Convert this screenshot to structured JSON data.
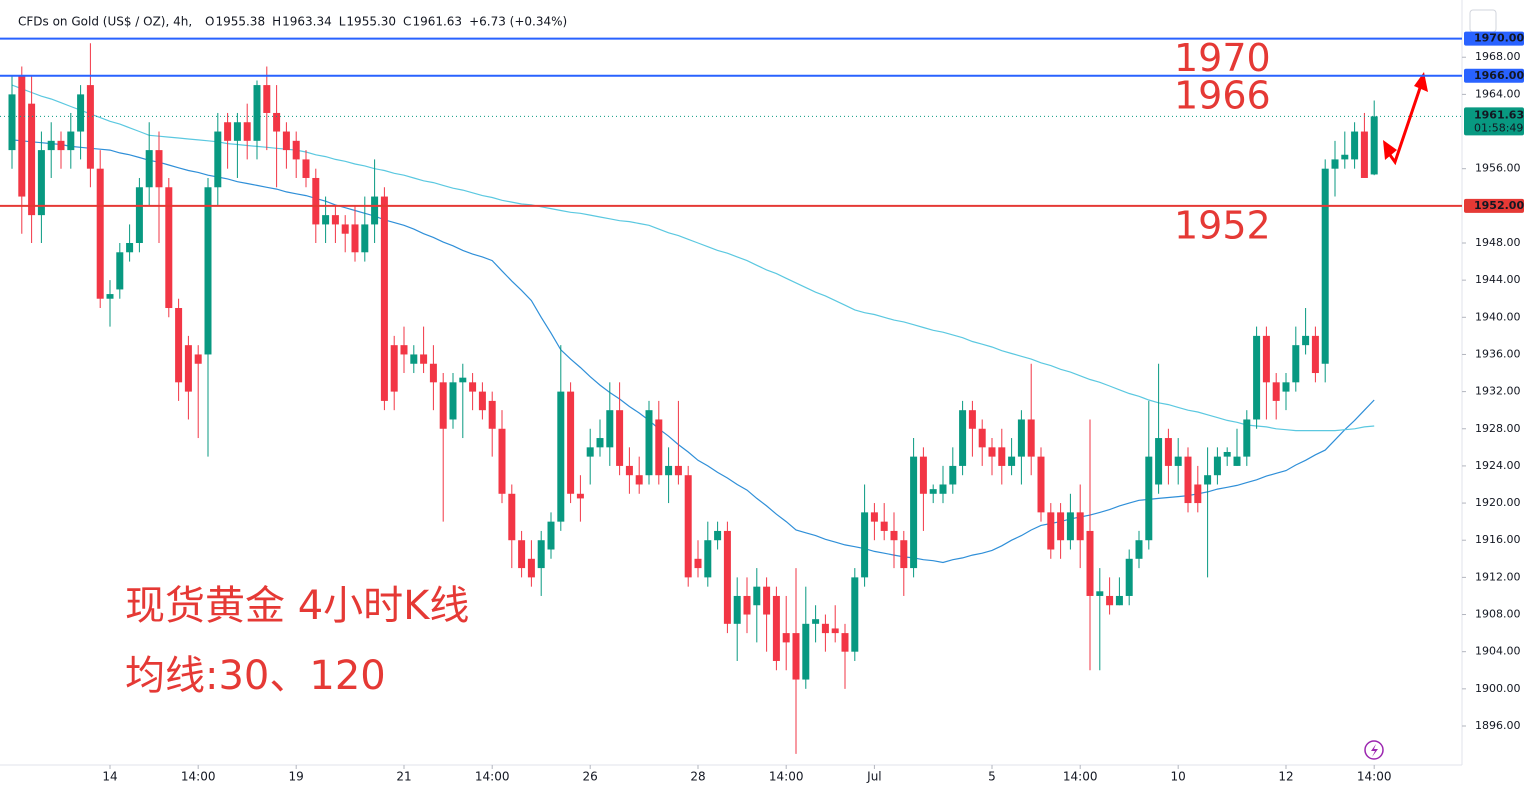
{
  "chart_data": {
    "type": "candlestick",
    "header": {
      "symbol": "CFDs on Gold (US$ / OZ), 4h,",
      "ohlc": [
        {
          "key": "O",
          "value": "1955.38"
        },
        {
          "key": "H",
          "value": "1963.34"
        },
        {
          "key": "L",
          "value": "1955.30"
        },
        {
          "key": "C",
          "value": "1961.63"
        }
      ],
      "change": "+6.73 (+0.34%)"
    },
    "categories": [
      null,
      null,
      null,
      null,
      null,
      null,
      null,
      null,
      null,
      null,
      "14",
      null,
      null,
      null,
      null,
      null,
      null,
      null,
      null,
      "14:00",
      null,
      null,
      null,
      null,
      null,
      null,
      null,
      null,
      null,
      "19",
      null,
      null,
      null,
      null,
      null,
      null,
      null,
      null,
      null,
      null,
      "21",
      null,
      null,
      null,
      null,
      null,
      null,
      null,
      null,
      "14:00",
      null,
      null,
      null,
      null,
      null,
      null,
      null,
      null,
      null,
      "26",
      null,
      null,
      null,
      null,
      null,
      null,
      null,
      null,
      null,
      null,
      "28",
      null,
      null,
      null,
      null,
      null,
      null,
      null,
      null,
      "14:00",
      null,
      null,
      null,
      null,
      null,
      null,
      null,
      null,
      "Jul",
      null,
      null,
      null,
      null,
      null,
      null,
      null,
      null,
      null,
      null,
      null,
      "5",
      null,
      null,
      null,
      null,
      null,
      null,
      null,
      null,
      "14:00",
      null,
      null,
      null,
      null,
      null,
      null,
      null,
      null,
      null,
      "10",
      null,
      null,
      null,
      null,
      null,
      null,
      null,
      null,
      null,
      null,
      "12",
      null,
      null,
      null,
      null,
      null,
      null,
      null,
      null,
      "14:00"
    ],
    "open": [
      1958,
      1966,
      1963,
      1951,
      1958,
      1959,
      1958,
      1960,
      1965,
      1956,
      1942,
      1943,
      1947,
      1948,
      1954,
      1958,
      1954,
      1941,
      1937,
      1936,
      1936,
      1954,
      1961,
      1959,
      1961,
      1959,
      1965,
      1962,
      1960,
      1959,
      1957,
      1955,
      1950,
      1951,
      1950,
      1950,
      1947,
      1950,
      1953,
      1937,
      1937,
      1935,
      1936,
      1935,
      1933,
      1929,
      1933,
      1933,
      1932,
      1931,
      1928,
      1921,
      1916,
      1914,
      1913,
      1915,
      1918,
      1932,
      1921,
      1925,
      1926,
      1926,
      1930,
      1924,
      1923,
      1923,
      1929,
      1923,
      1924,
      1923,
      1914,
      1912,
      1916,
      1917,
      1907,
      1910,
      1909,
      1911,
      1910,
      1906,
      1906,
      1901,
      1907,
      1907,
      1906.5,
      1906,
      1904,
      1912,
      1919,
      1918,
      1917,
      1916,
      1913,
      1925,
      1921,
      1921,
      1922,
      1924,
      1930,
      1928,
      1926,
      1926,
      1924,
      1925,
      1929,
      1925,
      1919,
      1919,
      1916,
      1919,
      1917,
      1910,
      1910,
      1909,
      1910,
      1914,
      1916,
      1922,
      1927,
      1924,
      1925,
      1922,
      1922,
      1923,
      1925,
      1924,
      1925,
      1929,
      1938,
      1933,
      1932,
      1933,
      1937,
      1938,
      1935,
      1956,
      1957,
      1957,
      1960,
      1955.38
    ],
    "high": [
      1966,
      1967,
      1966,
      1960,
      1961,
      1960,
      1962,
      1965,
      1969.5,
      1958,
      1944,
      1948,
      1950,
      1955,
      1961,
      1960,
      1955,
      1942,
      1938,
      1937,
      1955,
      1962,
      1962,
      1962,
      1963,
      1965.5,
      1967,
      1965,
      1961,
      1960,
      1958,
      1956,
      1953,
      1952,
      1951,
      1952,
      1953,
      1957,
      1954,
      1938,
      1939,
      1937,
      1939,
      1937,
      1934,
      1934,
      1935,
      1934,
      1933,
      1932,
      1930,
      1922,
      1917,
      1916,
      1917,
      1919,
      1937,
      1933,
      1923,
      1928,
      1929,
      1933,
      1933,
      1926,
      1925,
      1931,
      1931,
      1926,
      1931,
      1924,
      1916,
      1918,
      1918,
      1918,
      1912,
      1912,
      1913,
      1912,
      1911,
      1910,
      1913,
      1911,
      1909,
      1908,
      1909,
      1907,
      1913,
      1922,
      1920,
      1920,
      1919,
      1917,
      1927,
      1926,
      1922,
      1924,
      1926,
      1931,
      1931,
      1929,
      1927,
      1928,
      1927,
      1930,
      1935,
      1926,
      1920,
      1920,
      1921,
      1922,
      1929,
      1913,
      1912,
      1912,
      1915,
      1917,
      1931,
      1935,
      1928,
      1927,
      1926,
      1924,
      1926,
      1926,
      1926,
      1928,
      1930,
      1939,
      1939,
      1934,
      1934,
      1939,
      1941,
      1939,
      1957,
      1959,
      1960,
      1961,
      1962,
      1963.34
    ],
    "low": [
      1956,
      1949,
      1948,
      1948,
      1955,
      1956,
      1956,
      1957,
      1954,
      1941,
      1939,
      1942,
      1946,
      1947,
      1952,
      1948,
      1940,
      1931,
      1929,
      1927,
      1925,
      1952,
      1956,
      1955,
      1957,
      1957,
      1958,
      1954,
      1956,
      1955,
      1954,
      1948,
      1948,
      1948,
      1947,
      1946,
      1946,
      1948,
      1930,
      1930,
      1934,
      1934,
      1934,
      1930,
      1918,
      1928,
      1927,
      1930,
      1929,
      1925,
      1920,
      1913,
      1912,
      1911,
      1910,
      1914,
      1917,
      1920,
      1918,
      1922,
      1925,
      1924,
      1923,
      1921,
      1921,
      1922,
      1922,
      1920,
      1922,
      1911,
      1912,
      1911,
      1915,
      1906,
      1903,
      1906,
      1905,
      1904,
      1902,
      1902,
      1893,
      1900,
      1905,
      1904,
      1905,
      1900,
      1903,
      1911,
      1916,
      1916,
      1913,
      1910,
      1912,
      1917,
      1920,
      1920,
      1921,
      1923,
      1925,
      1924,
      1923,
      1922,
      1923,
      1922,
      1923,
      1918,
      1914,
      1914,
      1915,
      1913,
      1902,
      1902,
      1908,
      1909,
      1909,
      1913,
      1915,
      1921,
      1922,
      1922,
      1919,
      1919,
      1912,
      1922,
      1924,
      1924,
      1924,
      1928,
      1929,
      1929,
      1930,
      1932,
      1936,
      1933,
      1933,
      1953,
      1956,
      1956,
      1955,
      1955.3
    ],
    "close": [
      1964,
      1953,
      1951,
      1958,
      1959,
      1958,
      1960,
      1964,
      1956,
      1942,
      1942.5,
      1947,
      1948,
      1954,
      1958,
      1954,
      1941,
      1933,
      1932,
      1935,
      1954,
      1960,
      1959,
      1961,
      1959,
      1965,
      1962,
      1960,
      1958,
      1957,
      1955,
      1950,
      1951,
      1950,
      1949,
      1947,
      1950,
      1953,
      1931,
      1932,
      1936,
      1936,
      1935,
      1933,
      1928,
      1933,
      1933.5,
      1932,
      1930,
      1928,
      1921,
      1916,
      1913,
      1912,
      1916,
      1918,
      1932,
      1921,
      1920.5,
      1926,
      1927,
      1930,
      1924,
      1923,
      1922,
      1930,
      1923,
      1924,
      1923,
      1912,
      1913,
      1916,
      1917,
      1907,
      1910,
      1908,
      1911,
      1908,
      1903,
      1905,
      1901,
      1907,
      1907.5,
      1906,
      1906,
      1904,
      1912,
      1919,
      1918,
      1917,
      1916,
      1913,
      1925,
      1921,
      1921.5,
      1922,
      1924,
      1930,
      1928,
      1926,
      1925,
      1924,
      1925,
      1929,
      1925,
      1919,
      1915,
      1916,
      1919,
      1916,
      1910,
      1910.5,
      1909,
      1910,
      1914,
      1916,
      1925,
      1927,
      1924,
      1925,
      1920,
      1920,
      1923,
      1925,
      1925.5,
      1925,
      1929,
      1938,
      1933,
      1931,
      1933,
      1937,
      1938,
      1934,
      1956,
      1957,
      1957.5,
      1960,
      1955,
      1961.63
    ],
    "up_color": "#089981",
    "down_color": "#f23645",
    "lines": [
      {
        "color": "#2f8fd8",
        "values": [
          1959.1,
          1959.0,
          1958.9,
          1958.8,
          1958.7,
          1958.6,
          1958.4,
          1958.3,
          1958.2,
          1958.1,
          1958.0,
          1957.7,
          1957.5,
          1957.2,
          1956.9,
          1956.7,
          1956.4,
          1956.1,
          1955.8,
          1955.6,
          1955.3,
          1955.1,
          1954.9,
          1954.6,
          1954.4,
          1954.2,
          1954.0,
          1953.8,
          1953.5,
          1953.3,
          1953.1,
          1952.8,
          1952.5,
          1952.1,
          1951.8,
          1951.5,
          1951.2,
          1950.9,
          1950.5,
          1950.2,
          1949.9,
          1949.5,
          1949.0,
          1948.6,
          1948.1,
          1947.7,
          1947.2,
          1946.8,
          1946.5,
          1946.1,
          1945.0,
          1943.9,
          1942.9,
          1941.8,
          1940.0,
          1938.3,
          1936.5,
          1935.5,
          1934.6,
          1933.6,
          1932.7,
          1931.9,
          1931.2,
          1930.4,
          1929.7,
          1928.9,
          1928.0,
          1927.2,
          1926.3,
          1925.5,
          1924.6,
          1924.0,
          1923.3,
          1922.7,
          1922.0,
          1921.4,
          1920.5,
          1919.7,
          1918.8,
          1918.0,
          1917.1,
          1916.8,
          1916.5,
          1916.1,
          1915.8,
          1915.5,
          1915.3,
          1915.1,
          1914.8,
          1914.6,
          1914.4,
          1914.2,
          1914.1,
          1913.9,
          1913.8,
          1913.6,
          1913.9,
          1914.1,
          1914.4,
          1914.6,
          1914.9,
          1915.4,
          1916.0,
          1916.5,
          1917.1,
          1917.6,
          1917.8,
          1918.0,
          1918.3,
          1918.5,
          1918.7,
          1919.0,
          1919.3,
          1919.7,
          1920.0,
          1920.3,
          1920.4,
          1920.5,
          1920.6,
          1920.7,
          1920.8,
          1921.0,
          1921.2,
          1921.5,
          1921.7,
          1921.9,
          1922.2,
          1922.5,
          1922.9,
          1923.2,
          1923.5,
          1924.1,
          1924.6,
          1925.2,
          1925.7,
          1926.8,
          1927.9,
          1928.9,
          1930.0,
          1931.1
        ]
      },
      {
        "color": "#5bc8e0",
        "values": [
          1965.0,
          1964.6,
          1964.2,
          1963.8,
          1963.5,
          1963.1,
          1962.7,
          1962.3,
          1961.9,
          1961.5,
          1961.1,
          1960.8,
          1960.4,
          1960.0,
          1959.6,
          1959.5,
          1959.4,
          1959.3,
          1959.2,
          1959.1,
          1959.0,
          1958.9,
          1958.7,
          1958.6,
          1958.5,
          1958.4,
          1958.3,
          1958.2,
          1958.1,
          1958.0,
          1957.8,
          1957.5,
          1957.3,
          1957.0,
          1956.8,
          1956.5,
          1956.3,
          1956.0,
          1955.8,
          1955.5,
          1955.3,
          1955.0,
          1954.7,
          1954.5,
          1954.2,
          1953.9,
          1953.7,
          1953.4,
          1953.1,
          1952.9,
          1952.6,
          1952.4,
          1952.2,
          1952.1,
          1951.9,
          1951.7,
          1951.5,
          1951.3,
          1951.2,
          1951.0,
          1950.8,
          1950.6,
          1950.4,
          1950.3,
          1950.1,
          1949.9,
          1949.5,
          1949.1,
          1948.8,
          1948.4,
          1948.0,
          1947.6,
          1947.2,
          1946.9,
          1946.5,
          1946.1,
          1945.6,
          1945.1,
          1944.7,
          1944.2,
          1943.7,
          1943.2,
          1942.7,
          1942.3,
          1941.8,
          1941.3,
          1940.8,
          1940.5,
          1940.3,
          1940.0,
          1939.7,
          1939.5,
          1939.2,
          1938.9,
          1938.6,
          1938.4,
          1938.1,
          1937.8,
          1937.4,
          1937.1,
          1936.8,
          1936.4,
          1936.1,
          1935.8,
          1935.5,
          1935.1,
          1934.8,
          1934.4,
          1934.1,
          1933.7,
          1933.3,
          1933.0,
          1932.6,
          1932.2,
          1931.8,
          1931.5,
          1931.1,
          1930.8,
          1930.6,
          1930.3,
          1930.0,
          1929.8,
          1929.5,
          1929.2,
          1928.9,
          1928.7,
          1928.4,
          1928.3,
          1928.2,
          1928.0,
          1927.9,
          1927.8,
          1927.8,
          1927.8,
          1927.8,
          1927.8,
          1927.9,
          1928.0,
          1928.2,
          1928.3
        ]
      }
    ],
    "hlines": [
      {
        "value": 1970,
        "label": "1970.00",
        "annotation": "1970",
        "color": "#2962ff"
      },
      {
        "value": 1966,
        "label": "1966.00",
        "annotation": "1966",
        "color": "#2962ff"
      },
      {
        "value": 1952,
        "label": "1952.00",
        "annotation": "1952",
        "color": "#e53935"
      }
    ],
    "last_price": 1961.63,
    "countdown": "01:58:49",
    "ylim": [
      1891.8,
      1973.3
    ],
    "yticks": [
      {
        "value": 1968,
        "label": "1968.00"
      },
      {
        "value": 1964,
        "label": "1964.00"
      },
      {
        "value": 1956,
        "label": "1956.00"
      },
      {
        "value": 1948,
        "label": "1948.00"
      },
      {
        "value": 1944,
        "label": "1944.00"
      },
      {
        "value": 1940,
        "label": "1940.00"
      },
      {
        "value": 1936,
        "label": "1936.00"
      },
      {
        "value": 1932,
        "label": "1932.00"
      },
      {
        "value": 1928,
        "label": "1928.00"
      },
      {
        "value": 1924,
        "label": "1924.00"
      },
      {
        "value": 1920,
        "label": "1920.00"
      },
      {
        "value": 1916,
        "label": "1916.00"
      },
      {
        "value": 1912,
        "label": "1912.00"
      },
      {
        "value": 1908,
        "label": "1908.00"
      },
      {
        "value": 1904,
        "label": "1904.00"
      },
      {
        "value": 1900,
        "label": "1900.00"
      },
      {
        "value": 1896,
        "label": "1896.00"
      }
    ],
    "annotations": [
      "现货黄金 4小时K线",
      "均线:30、120"
    ]
  }
}
